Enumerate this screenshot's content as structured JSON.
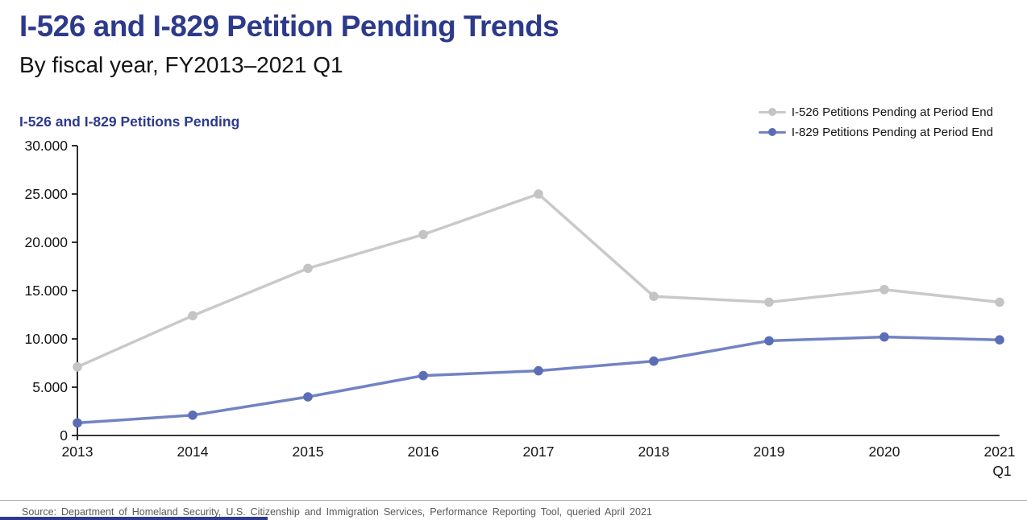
{
  "page": {
    "title": "I-526 and I-829 Petition Pending Trends",
    "subtitle": "By fiscal year, FY2013–2021 Q1",
    "source": "Source: Department of Homeland Security, U.S. Citizenship and Immigration Services, Performance Reporting Tool, queried April 2021"
  },
  "colors": {
    "accent_navy": "#2d3a8c",
    "axis": "#1a1a1a",
    "source_text": "#595959"
  },
  "chart_data": {
    "type": "line",
    "title": "I-526 and I-829 Petitions Pending",
    "categories": [
      "2013",
      "2014",
      "2015",
      "2016",
      "2017",
      "2018",
      "2019",
      "2020",
      "2021"
    ],
    "last_category_note": "Q1",
    "series": [
      {
        "name": "I-526 Petitions Pending at Period End",
        "color": "#c9c9c9",
        "marker_color": "#c4c4c4",
        "values": [
          7100,
          12400,
          17300,
          20800,
          25000,
          14400,
          13800,
          15100,
          13800
        ]
      },
      {
        "name": "I-829 Petitions Pending at Period End",
        "color": "#7283c5",
        "marker_color": "#5a6eb8",
        "values": [
          1300,
          2100,
          4000,
          6200,
          6700,
          7700,
          9800,
          10200,
          9900
        ]
      }
    ],
    "xlabel": "",
    "ylabel": "",
    "ylim": [
      0,
      30000
    ],
    "y_ticks": [
      0,
      5000,
      10000,
      15000,
      20000,
      25000,
      30000
    ],
    "y_tick_labels": [
      "0",
      "5.000",
      "10.000",
      "15.000",
      "20.000",
      "25.000",
      "30.000"
    ],
    "grid": false,
    "legend_position": "top-right",
    "markers": "circle"
  }
}
